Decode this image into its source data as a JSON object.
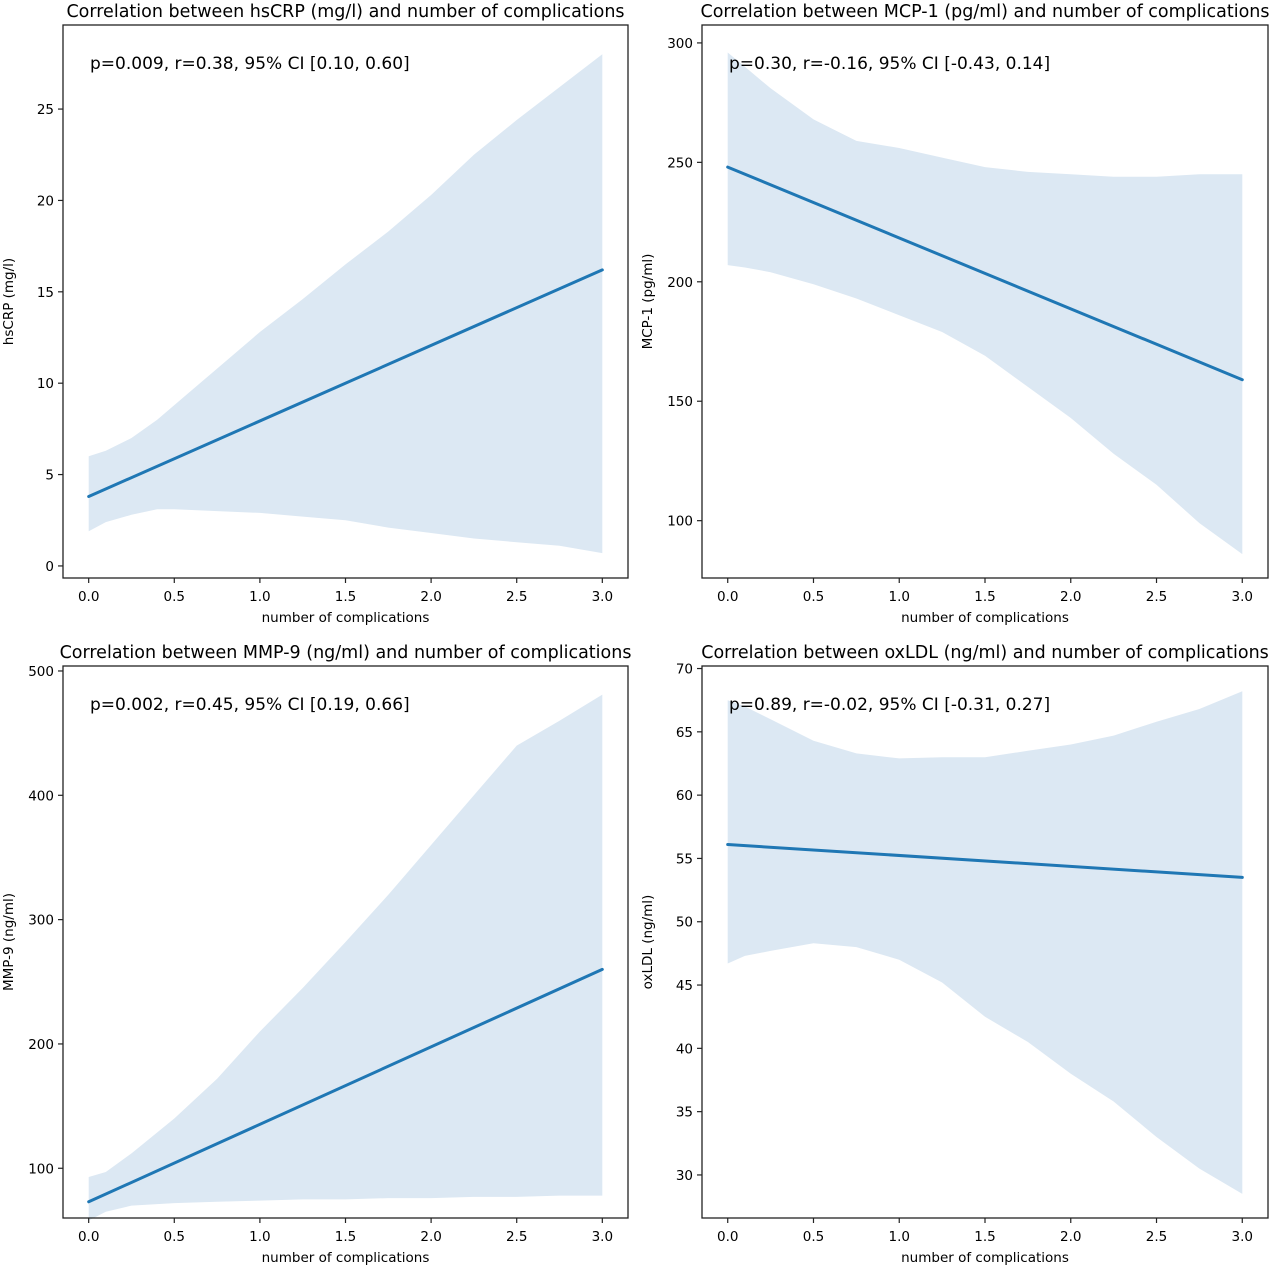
{
  "chart_data": [
    {
      "type": "line",
      "title": "Correlation between hsCRP (mg/l) and number of complications",
      "xlabel": "number of complications",
      "ylabel": "hsCRP (mg/l)",
      "annotation": "p=0.009, r=0.38, 95% CI [0.10, 0.60]",
      "xlim": [
        -0.15,
        3.15
      ],
      "ylim": [
        -0.66,
        29.6
      ],
      "xticks": [
        0.0,
        0.5,
        1.0,
        1.5,
        2.0,
        2.5,
        3.0
      ],
      "xtick_labels": [
        "0.0",
        "0.5",
        "1.0",
        "1.5",
        "2.0",
        "2.5",
        "3.0"
      ],
      "yticks": [
        0,
        5,
        10,
        15,
        20,
        25
      ],
      "ytick_labels": [
        "0",
        "5",
        "10",
        "15",
        "20",
        "25"
      ],
      "grid": false,
      "series": [
        {
          "name": "regression line",
          "x": [
            0,
            3
          ],
          "y": [
            3.8,
            16.2
          ]
        }
      ],
      "ci_band": {
        "x": [
          0,
          0.1,
          0.25,
          0.4,
          0.5,
          0.75,
          1.0,
          1.25,
          1.5,
          1.75,
          2.0,
          2.25,
          2.5,
          2.75,
          3.0
        ],
        "upper": [
          6.0,
          6.3,
          7.0,
          8.0,
          8.8,
          10.8,
          12.8,
          14.6,
          16.5,
          18.3,
          20.3,
          22.5,
          24.4,
          26.2,
          28.0
        ],
        "lower": [
          1.9,
          2.4,
          2.8,
          3.1,
          3.1,
          3.0,
          2.9,
          2.7,
          2.5,
          2.1,
          1.8,
          1.5,
          1.3,
          1.1,
          0.7
        ]
      },
      "colors": {
        "line": "#1f77b4",
        "band": "#dce8f3"
      }
    },
    {
      "type": "line",
      "title": "Correlation between MCP-1 (pg/ml) and number of complications",
      "xlabel": "number of complications",
      "ylabel": "MCP-1 (pg/ml)",
      "annotation": "p=0.30, r=-0.16, 95% CI [-0.43, 0.14]",
      "xlim": [
        -0.15,
        3.15
      ],
      "ylim": [
        76,
        307.5
      ],
      "xticks": [
        0.0,
        0.5,
        1.0,
        1.5,
        2.0,
        2.5,
        3.0
      ],
      "xtick_labels": [
        "0.0",
        "0.5",
        "1.0",
        "1.5",
        "2.0",
        "2.5",
        "3.0"
      ],
      "yticks": [
        100,
        150,
        200,
        250,
        300
      ],
      "ytick_labels": [
        "100",
        "150",
        "200",
        "250",
        "300"
      ],
      "grid": false,
      "series": [
        {
          "name": "regression line",
          "x": [
            0,
            3
          ],
          "y": [
            248,
            159
          ]
        }
      ],
      "ci_band": {
        "x": [
          0,
          0.1,
          0.25,
          0.5,
          0.75,
          1.0,
          1.25,
          1.5,
          1.75,
          2.0,
          2.25,
          2.5,
          2.75,
          3.0
        ],
        "upper": [
          296,
          290,
          281,
          268,
          259,
          256,
          252,
          248,
          246,
          245,
          244,
          244,
          245,
          245
        ],
        "lower": [
          207,
          206,
          204,
          199,
          193,
          186,
          179,
          169,
          156,
          143,
          128,
          115,
          99,
          86
        ]
      },
      "colors": {
        "line": "#1f77b4",
        "band": "#dce8f3"
      }
    },
    {
      "type": "line",
      "title": "Correlation between MMP-9 (ng/ml) and number of complications",
      "xlabel": "number of complications",
      "ylabel": "MMP-9 (ng/ml)",
      "annotation": "p=0.002, r=0.45, 95% CI [0.19, 0.66]",
      "xlim": [
        -0.15,
        3.15
      ],
      "ylim": [
        60,
        504
      ],
      "xticks": [
        0.0,
        0.5,
        1.0,
        1.5,
        2.0,
        2.5,
        3.0
      ],
      "xtick_labels": [
        "0.0",
        "0.5",
        "1.0",
        "1.5",
        "2.0",
        "2.5",
        "3.0"
      ],
      "yticks": [
        100,
        200,
        300,
        400,
        500
      ],
      "ytick_labels": [
        "100",
        "200",
        "300",
        "400",
        "500"
      ],
      "grid": false,
      "series": [
        {
          "name": "regression line",
          "x": [
            0,
            3
          ],
          "y": [
            73,
            260
          ]
        }
      ],
      "ci_band": {
        "x": [
          0,
          0.1,
          0.25,
          0.5,
          0.75,
          1.0,
          1.25,
          1.5,
          1.75,
          2.0,
          2.25,
          2.5,
          2.75,
          3.0
        ],
        "upper": [
          93,
          97,
          112,
          140,
          172,
          210,
          245,
          282,
          320,
          360,
          400,
          440,
          460,
          481
        ],
        "lower": [
          58,
          65,
          70,
          72,
          73,
          74,
          75,
          75,
          76,
          76,
          77,
          77,
          78,
          78
        ]
      },
      "colors": {
        "line": "#1f77b4",
        "band": "#dce8f3"
      }
    },
    {
      "type": "line",
      "title": "Correlation between oxLDL (ng/ml) and number of complications",
      "xlabel": "number of complications",
      "ylabel": "oxLDL (ng/ml)",
      "annotation": "p=0.89, r=-0.02, 95% CI [-0.31, 0.27]",
      "xlim": [
        -0.15,
        3.15
      ],
      "ylim": [
        26.6,
        70.2
      ],
      "xticks": [
        0.0,
        0.5,
        1.0,
        1.5,
        2.0,
        2.5,
        3.0
      ],
      "xtick_labels": [
        "0.0",
        "0.5",
        "1.0",
        "1.5",
        "2.0",
        "2.5",
        "3.0"
      ],
      "yticks": [
        30,
        35,
        40,
        45,
        50,
        55,
        60,
        65,
        70
      ],
      "ytick_labels": [
        "30",
        "35",
        "40",
        "45",
        "50",
        "55",
        "60",
        "65",
        "70"
      ],
      "grid": false,
      "series": [
        {
          "name": "regression line",
          "x": [
            0,
            3
          ],
          "y": [
            56.1,
            53.5
          ]
        }
      ],
      "ci_band": {
        "x": [
          0,
          0.1,
          0.25,
          0.5,
          0.75,
          1.0,
          1.25,
          1.5,
          1.75,
          2.0,
          2.25,
          2.5,
          2.75,
          3.0
        ],
        "upper": [
          67.5,
          67.0,
          66.0,
          64.3,
          63.3,
          62.9,
          63.0,
          63.0,
          63.5,
          64.0,
          64.7,
          65.8,
          66.8,
          68.2
        ],
        "lower": [
          46.7,
          47.3,
          47.7,
          48.3,
          48.0,
          47.0,
          45.2,
          42.5,
          40.5,
          38.0,
          35.8,
          33.0,
          30.5,
          28.5
        ]
      },
      "colors": {
        "line": "#1f77b4",
        "band": "#dce8f3"
      }
    }
  ]
}
